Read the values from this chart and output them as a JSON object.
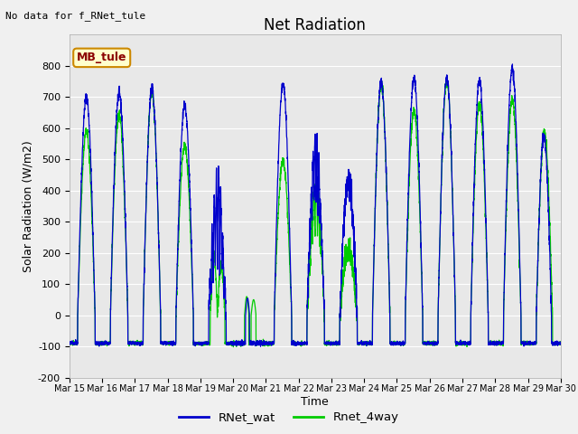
{
  "title": "Net Radiation",
  "xlabel": "Time",
  "ylabel": "Solar Radiation (W/m2)",
  "top_annotation": "No data for f_RNet_tule",
  "box_label": "MB_tule",
  "ylim": [
    -200,
    900
  ],
  "yticks": [
    -200,
    -100,
    0,
    100,
    200,
    300,
    400,
    500,
    600,
    700,
    800
  ],
  "xtick_labels": [
    "Mar 15",
    "Mar 16",
    "Mar 17",
    "Mar 18",
    "Mar 19",
    "Mar 20",
    "Mar 21",
    "Mar 22",
    "Mar 23",
    "Mar 24",
    "Mar 25",
    "Mar 26",
    "Mar 27",
    "Mar 28",
    "Mar 29",
    "Mar 30"
  ],
  "n_days": 15,
  "line1_color": "#0000cc",
  "line2_color": "#00cc00",
  "line1_label": "RNet_wat",
  "line2_label": "Rnet_4way",
  "plot_bg": "#e8e8e8",
  "fig_bg": "#f0f0f0",
  "peaks_wat": [
    700,
    715,
    725,
    675,
    470,
    50,
    745,
    535,
    430,
    745,
    760,
    762,
    752,
    790,
    575
  ],
  "peaks_4way": [
    590,
    645,
    715,
    545,
    195,
    50,
    495,
    425,
    375,
    742,
    658,
    750,
    677,
    692,
    582
  ]
}
